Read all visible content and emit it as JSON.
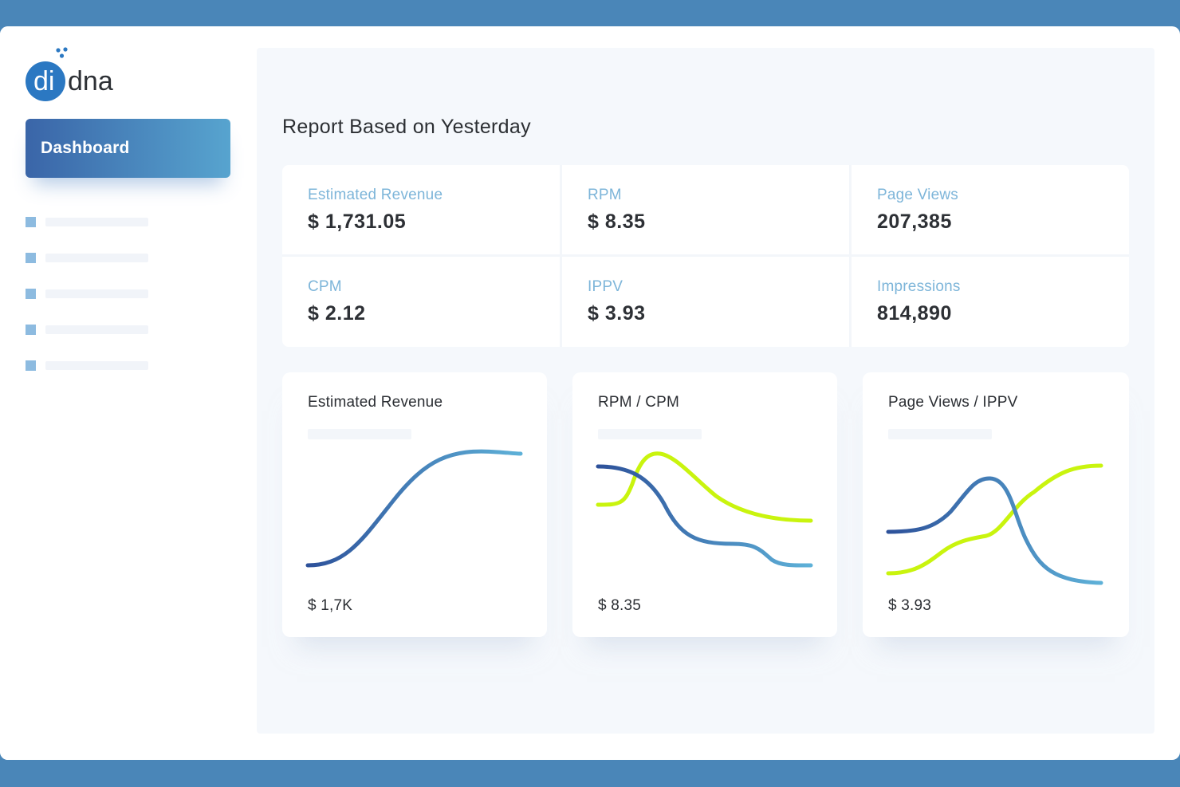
{
  "brand": {
    "logo_text_left": "di",
    "logo_text_right": "dna",
    "colors": {
      "primary": "#2b78c2",
      "dark": "#2d3035"
    }
  },
  "sidebar": {
    "active_item": "Dashboard",
    "placeholder_items": 5
  },
  "report": {
    "title": "Report Based on Yesterday",
    "metrics": [
      {
        "label": "Estimated Revenue",
        "value": "$ 1,731.05"
      },
      {
        "label": "RPM",
        "value": "$ 8.35"
      },
      {
        "label": "Page Views",
        "value": "207,385"
      },
      {
        "label": "CPM",
        "value": "$ 2.12"
      },
      {
        "label": "IPPV",
        "value": "$ 3.93"
      },
      {
        "label": "Impressions",
        "value": "814,890"
      }
    ]
  },
  "cards": [
    {
      "title": "Estimated Revenue",
      "value": "$ 1,7K"
    },
    {
      "title": "RPM / CPM",
      "value": "$ 8.35"
    },
    {
      "title": "Page Views / IPPV",
      "value": "$ 3.93"
    }
  ],
  "chart_colors": {
    "blue_start": "#2d519a",
    "blue_end": "#5eb1d8",
    "lime": "#c9f40e"
  }
}
